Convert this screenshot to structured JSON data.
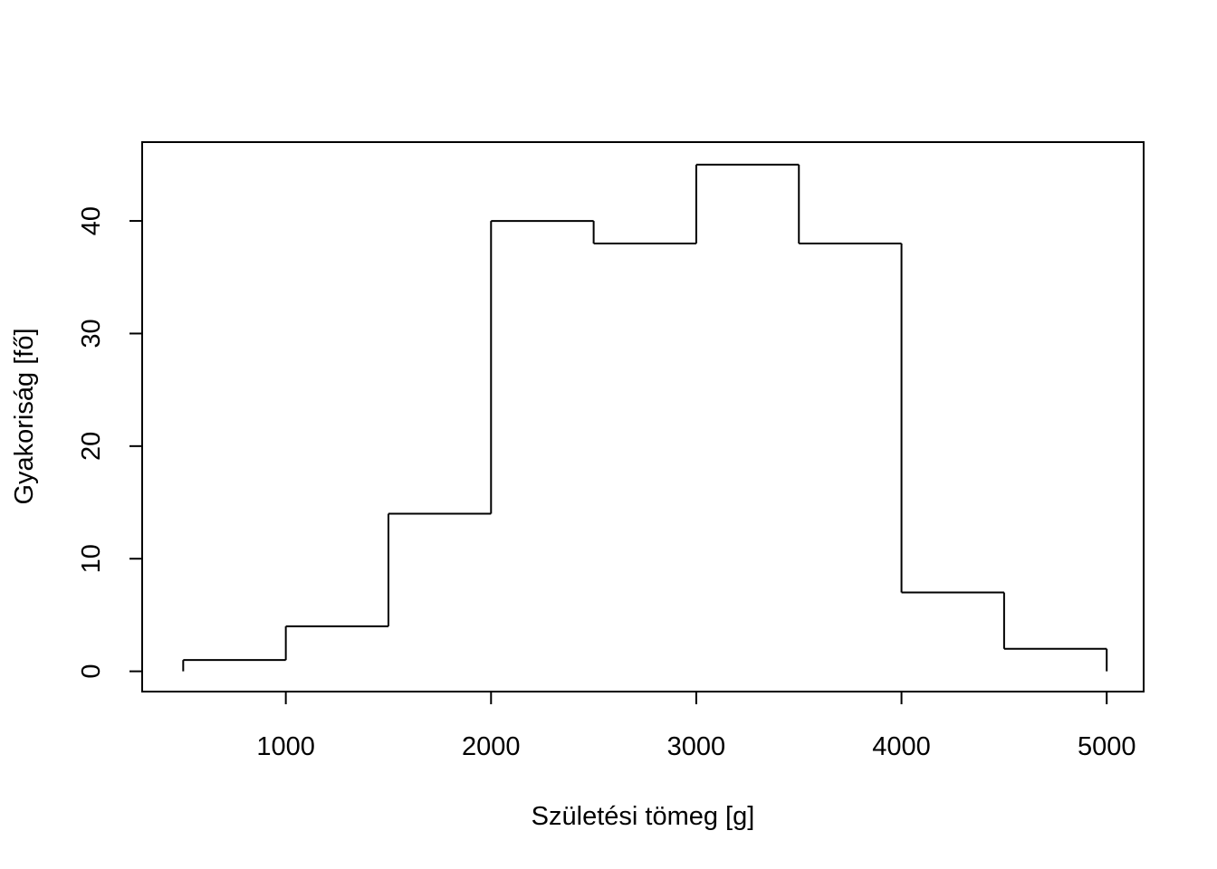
{
  "chart_data": {
    "type": "histogram",
    "title": "",
    "xlabel": "Születési tömeg [g]",
    "ylabel": "Gyakoriság [fő]",
    "bin_edges": [
      500,
      1000,
      1500,
      2000,
      2500,
      3000,
      3500,
      4000,
      4500,
      5000
    ],
    "values": [
      1,
      4,
      14,
      40,
      38,
      45,
      38,
      7,
      2
    ],
    "xlim": [
      300,
      5180
    ],
    "ylim": [
      -1.8,
      47
    ],
    "x_ticks": [
      1000,
      2000,
      3000,
      4000,
      5000
    ],
    "y_ticks": [
      0,
      10,
      20,
      30,
      40
    ],
    "grid": false,
    "legend": "none",
    "line_color": "#000000"
  }
}
